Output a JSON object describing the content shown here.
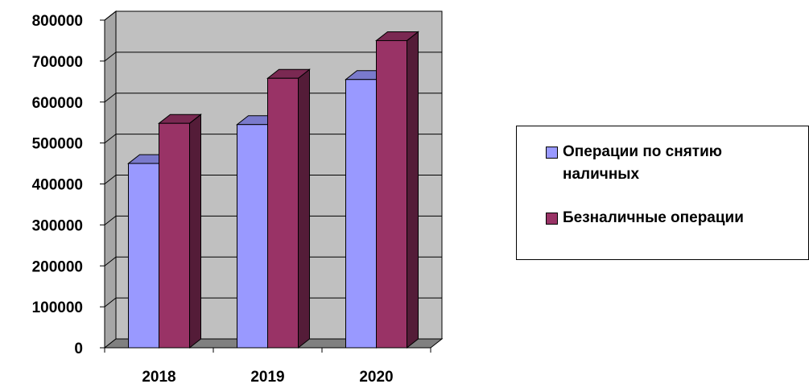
{
  "chart_data": {
    "type": "bar",
    "title": "",
    "xlabel": "",
    "ylabel": "",
    "categories": [
      "2018",
      "2019",
      "2020"
    ],
    "series": [
      {
        "name": "Операции по снятию наличных",
        "values": [
          450000,
          545000,
          655000
        ],
        "color": "#9999ff"
      },
      {
        "name": "Безналичные операции",
        "values": [
          548000,
          658000,
          750000
        ],
        "color": "#993366"
      }
    ],
    "ylim": [
      0,
      800000
    ],
    "yticks": [
      0,
      100000,
      200000,
      300000,
      400000,
      500000,
      600000,
      700000,
      800000
    ],
    "ytick_labels": [
      "0",
      "100000",
      "200000",
      "300000",
      "400000",
      "500000",
      "600000",
      "700000",
      "800000"
    ],
    "grid": true,
    "legend_position": "right",
    "wall_color": "#c0c0c0",
    "floor_color": "#808080"
  },
  "legend": {
    "items": [
      {
        "line1": "Операции по снятию",
        "line2": "наличных"
      },
      {
        "line1": "Безналичные операции",
        "line2": ""
      }
    ]
  }
}
